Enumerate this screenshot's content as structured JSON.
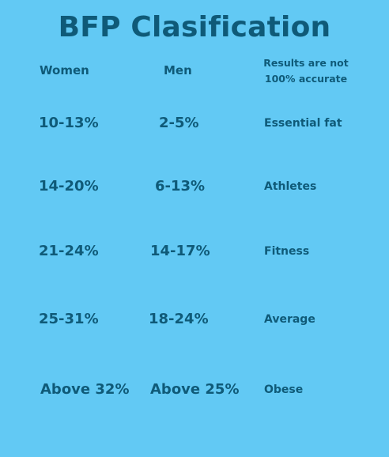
{
  "title": "BFP Clasification",
  "headers": {
    "women": "Women",
    "men": "Men",
    "note_line1": "Results are not",
    "note_line2": "100% accurate"
  },
  "rows": [
    {
      "women": "10-13%",
      "men": "2-5%",
      "category": "Essential fat"
    },
    {
      "women": "14-20%",
      "men": "6-13%",
      "category": "Athletes"
    },
    {
      "women": "21-24%",
      "men": "14-17%",
      "category": "Fitness"
    },
    {
      "women": "25-31%",
      "men": "18-24%",
      "category": "Average"
    },
    {
      "women": "Above 32%",
      "men": "Above 25%",
      "category": "Obese"
    }
  ],
  "colors": {
    "background": "#62c9f4",
    "text": "#0f5a78"
  }
}
